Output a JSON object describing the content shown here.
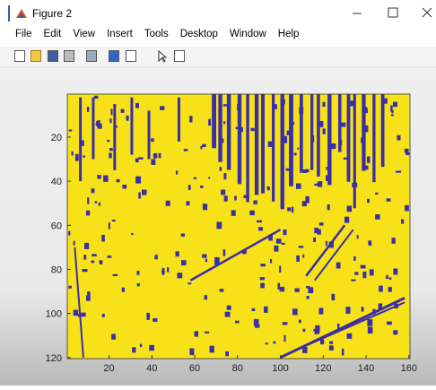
{
  "window": {
    "title": "Figure 2"
  },
  "menu": [
    "File",
    "Edit",
    "View",
    "Insert",
    "Tools",
    "Desktop",
    "Window",
    "Help"
  ],
  "axes": {
    "xticks": [
      20,
      40,
      60,
      80,
      100,
      120,
      140,
      160
    ],
    "yticks": [
      20,
      40,
      60,
      80,
      100,
      120
    ]
  }
}
